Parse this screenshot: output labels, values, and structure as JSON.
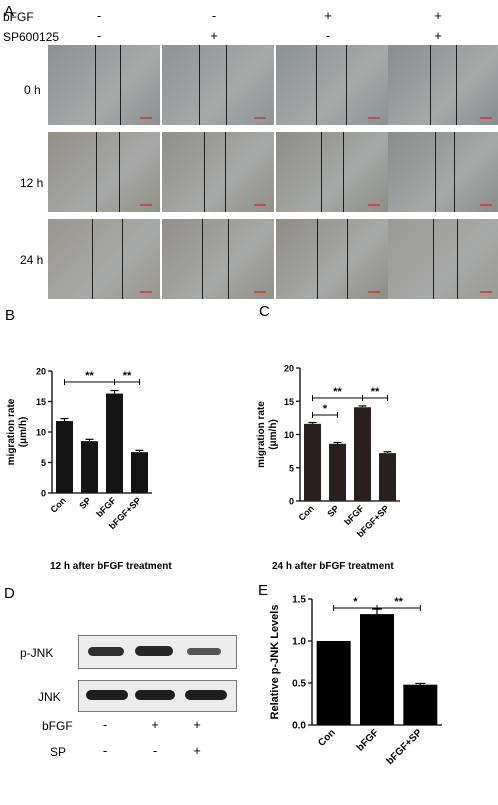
{
  "panels": {
    "A": {
      "letter": "A",
      "rows_labels": [
        "bFGF",
        "SP600125"
      ],
      "signs": [
        [
          "-",
          "-",
          "+",
          "+"
        ],
        [
          "-",
          "+",
          "-",
          "+"
        ]
      ],
      "time_labels": [
        "0 h",
        "12 h",
        "24 h"
      ]
    },
    "B": {
      "letter": "B",
      "caption": "12 h after bFGF treatment"
    },
    "C": {
      "letter": "C",
      "caption": "24 h after bFGF treatment"
    },
    "D": {
      "letter": "D",
      "band_labels": [
        "p-JNK",
        "JNK"
      ],
      "condition_labels": [
        "bFGF",
        "SP"
      ],
      "signs": [
        [
          "-",
          "+",
          "+"
        ],
        [
          "-",
          "-",
          "+"
        ]
      ]
    },
    "E": {
      "letter": "E"
    }
  },
  "chart_data": [
    {
      "panel": "B",
      "type": "bar",
      "categories": [
        "Con",
        "SP",
        "bFGF",
        "bFGF+SP"
      ],
      "values": [
        11.8,
        8.5,
        16.3,
        6.7
      ],
      "errors": [
        0.4,
        0.3,
        0.5,
        0.3
      ],
      "ylabel": "migration rate\n(μm/h)",
      "ylim": [
        0,
        20
      ],
      "yticks": [
        "0",
        "5",
        "10",
        "15",
        "20"
      ],
      "significance": [
        {
          "from": 0,
          "to": 2,
          "label": "**"
        },
        {
          "from": 2,
          "to": 3,
          "label": "**"
        }
      ],
      "bar_color": "#141414"
    },
    {
      "panel": "C",
      "type": "bar",
      "categories": [
        "Con",
        "SP",
        "bFGF",
        "bFGF+SP"
      ],
      "values": [
        11.6,
        8.6,
        14.1,
        7.2
      ],
      "errors": [
        0.2,
        0.2,
        0.2,
        0.2
      ],
      "ylabel": "migration rate\n(μm/h)",
      "ylim": [
        0,
        20
      ],
      "yticks": [
        "0",
        "5",
        "10",
        "15",
        "20"
      ],
      "significance": [
        {
          "from": 0,
          "to": 1,
          "label": "*"
        },
        {
          "from": 0,
          "to": 2,
          "label": "**"
        },
        {
          "from": 2,
          "to": 3,
          "label": "**"
        }
      ],
      "bar_color": "#2a1f1f"
    },
    {
      "panel": "E",
      "type": "bar",
      "categories": [
        "Con",
        "bFGF",
        "bFGF+SP"
      ],
      "values": [
        1.0,
        1.32,
        0.48
      ],
      "errors": [
        0,
        0.06,
        0.015
      ],
      "ylabel": "Relative p-JNK Levels",
      "ylim": [
        0,
        1.5
      ],
      "yticks": [
        "0.0",
        "0.5",
        "1.0",
        "1.5"
      ],
      "significance": [
        {
          "from": 0,
          "to": 1,
          "label": "*"
        },
        {
          "from": 1,
          "to": 2,
          "label": "**"
        }
      ],
      "bar_color": "#000000"
    }
  ]
}
